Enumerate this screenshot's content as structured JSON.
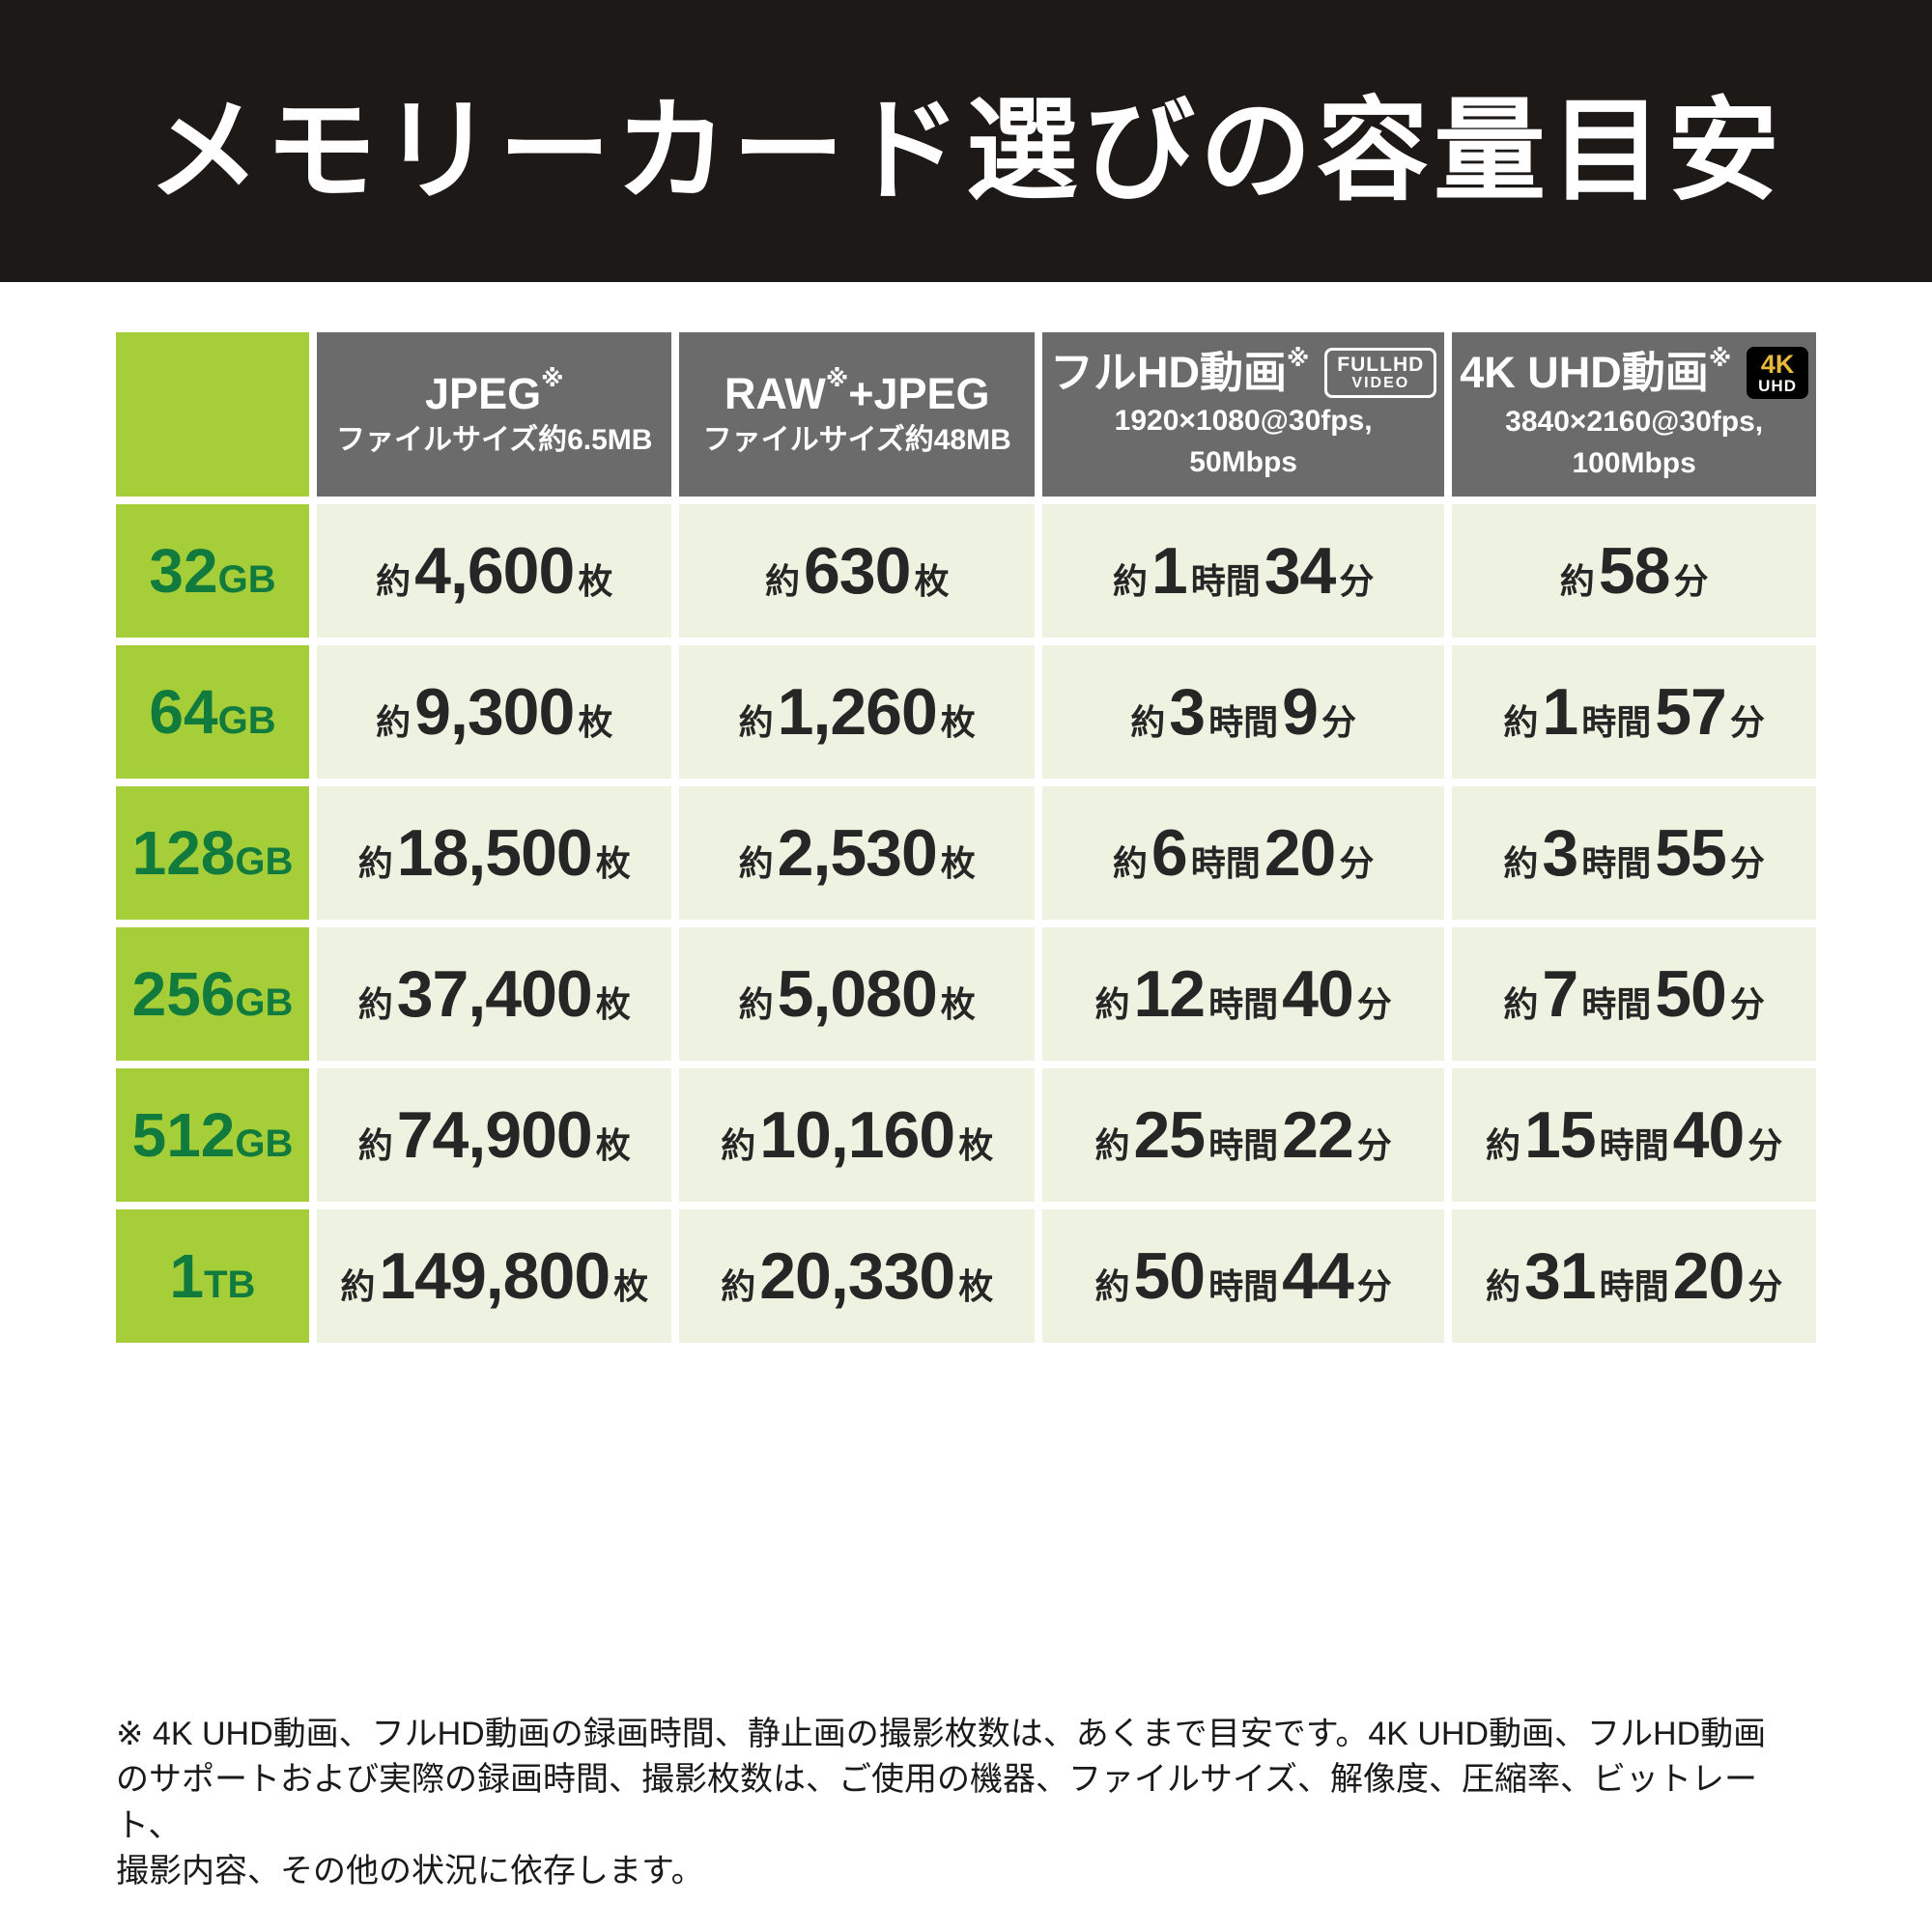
{
  "title": "メモリーカード選びの容量目安",
  "colors": {
    "banner_bg": "#1d1916",
    "header_bg": "#6b6b6b",
    "capacity_bg": "#a6ce39",
    "capacity_text": "#117a3d",
    "cell_bg": "#eef2e0",
    "badge_4k_gold": "#e8b93c"
  },
  "table": {
    "headers": [
      {
        "main": "JPEG",
        "sup": "※",
        "main2": "",
        "sub1": "ファイルサイズ約6.5MB",
        "sub2": ""
      },
      {
        "main": "RAW",
        "sup": "※",
        "main2": "+JPEG",
        "sub1": "ファイルサイズ約48MB",
        "sub2": ""
      },
      {
        "main": "フルHD動画",
        "sup": "※",
        "main2": "",
        "badge": {
          "line1": "FULLHD",
          "line2": "VIDEO"
        },
        "sub1": "1920×1080@30fps,",
        "sub2": "50Mbps"
      },
      {
        "main": "4K UHD動画",
        "sup": "※",
        "main2": "",
        "badge": {
          "line1": "4K",
          "line2": "UHD"
        },
        "sub1": "3840×2160@30fps,",
        "sub2": "100Mbps"
      }
    ],
    "rows": [
      {
        "capacity": {
          "num": "32",
          "unit": "GB"
        },
        "cells": [
          [
            {
              "k": "small",
              "t": "約"
            },
            {
              "k": "big",
              "t": "4,600"
            },
            {
              "k": "small",
              "t": "枚"
            }
          ],
          [
            {
              "k": "small",
              "t": "約"
            },
            {
              "k": "big",
              "t": "630"
            },
            {
              "k": "small",
              "t": "枚"
            }
          ],
          [
            {
              "k": "small",
              "t": "約"
            },
            {
              "k": "big",
              "t": "1"
            },
            {
              "k": "small",
              "t": "時間"
            },
            {
              "k": "big",
              "t": "34"
            },
            {
              "k": "small",
              "t": "分"
            }
          ],
          [
            {
              "k": "small",
              "t": "約"
            },
            {
              "k": "big",
              "t": "58"
            },
            {
              "k": "small",
              "t": "分"
            }
          ]
        ]
      },
      {
        "capacity": {
          "num": "64",
          "unit": "GB"
        },
        "cells": [
          [
            {
              "k": "small",
              "t": "約"
            },
            {
              "k": "big",
              "t": "9,300"
            },
            {
              "k": "small",
              "t": "枚"
            }
          ],
          [
            {
              "k": "small",
              "t": "約"
            },
            {
              "k": "big",
              "t": "1,260"
            },
            {
              "k": "small",
              "t": "枚"
            }
          ],
          [
            {
              "k": "small",
              "t": "約"
            },
            {
              "k": "big",
              "t": "3"
            },
            {
              "k": "small",
              "t": "時間"
            },
            {
              "k": "big",
              "t": "9"
            },
            {
              "k": "small",
              "t": "分"
            }
          ],
          [
            {
              "k": "small",
              "t": "約"
            },
            {
              "k": "big",
              "t": "1"
            },
            {
              "k": "small",
              "t": "時間"
            },
            {
              "k": "big",
              "t": "57"
            },
            {
              "k": "small",
              "t": "分"
            }
          ]
        ]
      },
      {
        "capacity": {
          "num": "128",
          "unit": "GB"
        },
        "cells": [
          [
            {
              "k": "small",
              "t": "約"
            },
            {
              "k": "big",
              "t": "18,500"
            },
            {
              "k": "small",
              "t": "枚"
            }
          ],
          [
            {
              "k": "small",
              "t": "約"
            },
            {
              "k": "big",
              "t": "2,530"
            },
            {
              "k": "small",
              "t": "枚"
            }
          ],
          [
            {
              "k": "small",
              "t": "約"
            },
            {
              "k": "big",
              "t": "6"
            },
            {
              "k": "small",
              "t": "時間"
            },
            {
              "k": "big",
              "t": "20"
            },
            {
              "k": "small",
              "t": "分"
            }
          ],
          [
            {
              "k": "small",
              "t": "約"
            },
            {
              "k": "big",
              "t": "3"
            },
            {
              "k": "small",
              "t": "時間"
            },
            {
              "k": "big",
              "t": "55"
            },
            {
              "k": "small",
              "t": "分"
            }
          ]
        ]
      },
      {
        "capacity": {
          "num": "256",
          "unit": "GB"
        },
        "cells": [
          [
            {
              "k": "small",
              "t": "約"
            },
            {
              "k": "big",
              "t": "37,400"
            },
            {
              "k": "small",
              "t": "枚"
            }
          ],
          [
            {
              "k": "small",
              "t": "約"
            },
            {
              "k": "big",
              "t": "5,080"
            },
            {
              "k": "small",
              "t": "枚"
            }
          ],
          [
            {
              "k": "small",
              "t": "約"
            },
            {
              "k": "big",
              "t": "12"
            },
            {
              "k": "small",
              "t": "時間"
            },
            {
              "k": "big",
              "t": "40"
            },
            {
              "k": "small",
              "t": "分"
            }
          ],
          [
            {
              "k": "small",
              "t": "約"
            },
            {
              "k": "big",
              "t": "7"
            },
            {
              "k": "small",
              "t": "時間"
            },
            {
              "k": "big",
              "t": "50"
            },
            {
              "k": "small",
              "t": "分"
            }
          ]
        ]
      },
      {
        "capacity": {
          "num": "512",
          "unit": "GB"
        },
        "cells": [
          [
            {
              "k": "small",
              "t": "約"
            },
            {
              "k": "big",
              "t": "74,900"
            },
            {
              "k": "small",
              "t": "枚"
            }
          ],
          [
            {
              "k": "small",
              "t": "約"
            },
            {
              "k": "big",
              "t": "10,160"
            },
            {
              "k": "small",
              "t": "枚"
            }
          ],
          [
            {
              "k": "small",
              "t": "約"
            },
            {
              "k": "big",
              "t": "25"
            },
            {
              "k": "small",
              "t": "時間"
            },
            {
              "k": "big",
              "t": "22"
            },
            {
              "k": "small",
              "t": "分"
            }
          ],
          [
            {
              "k": "small",
              "t": "約"
            },
            {
              "k": "big",
              "t": "15"
            },
            {
              "k": "small",
              "t": "時間"
            },
            {
              "k": "big",
              "t": "40"
            },
            {
              "k": "small",
              "t": "分"
            }
          ]
        ]
      },
      {
        "capacity": {
          "num": "1",
          "unit": "TB"
        },
        "cells": [
          [
            {
              "k": "small",
              "t": "約"
            },
            {
              "k": "big",
              "t": "149,800"
            },
            {
              "k": "small",
              "t": "枚"
            }
          ],
          [
            {
              "k": "small",
              "t": "約"
            },
            {
              "k": "big",
              "t": "20,330"
            },
            {
              "k": "small",
              "t": "枚"
            }
          ],
          [
            {
              "k": "small",
              "t": "約"
            },
            {
              "k": "big",
              "t": "50"
            },
            {
              "k": "small",
              "t": "時間"
            },
            {
              "k": "big",
              "t": "44"
            },
            {
              "k": "small",
              "t": "分"
            }
          ],
          [
            {
              "k": "small",
              "t": "約"
            },
            {
              "k": "big",
              "t": "31"
            },
            {
              "k": "small",
              "t": "時間"
            },
            {
              "k": "big",
              "t": "20"
            },
            {
              "k": "small",
              "t": "分"
            }
          ]
        ]
      }
    ]
  },
  "chart_data": {
    "type": "table",
    "title": "メモリーカード選びの容量目安",
    "columns": [
      "容量",
      "JPEG※ ファイルサイズ約6.5MB",
      "RAW※+JPEG ファイルサイズ約48MB",
      "フルHD動画※ 1920×1080@30fps, 50Mbps",
      "4K UHD動画※ 3840×2160@30fps, 100Mbps"
    ],
    "rows": [
      [
        "32GB",
        "約4,600枚",
        "約630枚",
        "約1時間34分",
        "約58分"
      ],
      [
        "64GB",
        "約9,300枚",
        "約1,260枚",
        "約3時間9分",
        "約1時間57分"
      ],
      [
        "128GB",
        "約18,500枚",
        "約2,530枚",
        "約6時間20分",
        "約3時間55分"
      ],
      [
        "256GB",
        "約37,400枚",
        "約5,080枚",
        "約12時間40分",
        "約7時間50分"
      ],
      [
        "512GB",
        "約74,900枚",
        "約10,160枚",
        "約25時間22分",
        "約15時間40分"
      ],
      [
        "1TB",
        "約149,800枚",
        "約20,330枚",
        "約50時間44分",
        "約31時間20分"
      ]
    ]
  },
  "footnote": "※ 4K UHD動画、フルHD動画の録画時間、静止画の撮影枚数は、あくまで目安です。4K UHD動画、フルHD動画\nのサポートおよび実際の録画時間、撮影枚数は、ご使用の機器、ファイルサイズ、解像度、圧縮率、ビットレート、\n撮影内容、その他の状況に依存します。"
}
